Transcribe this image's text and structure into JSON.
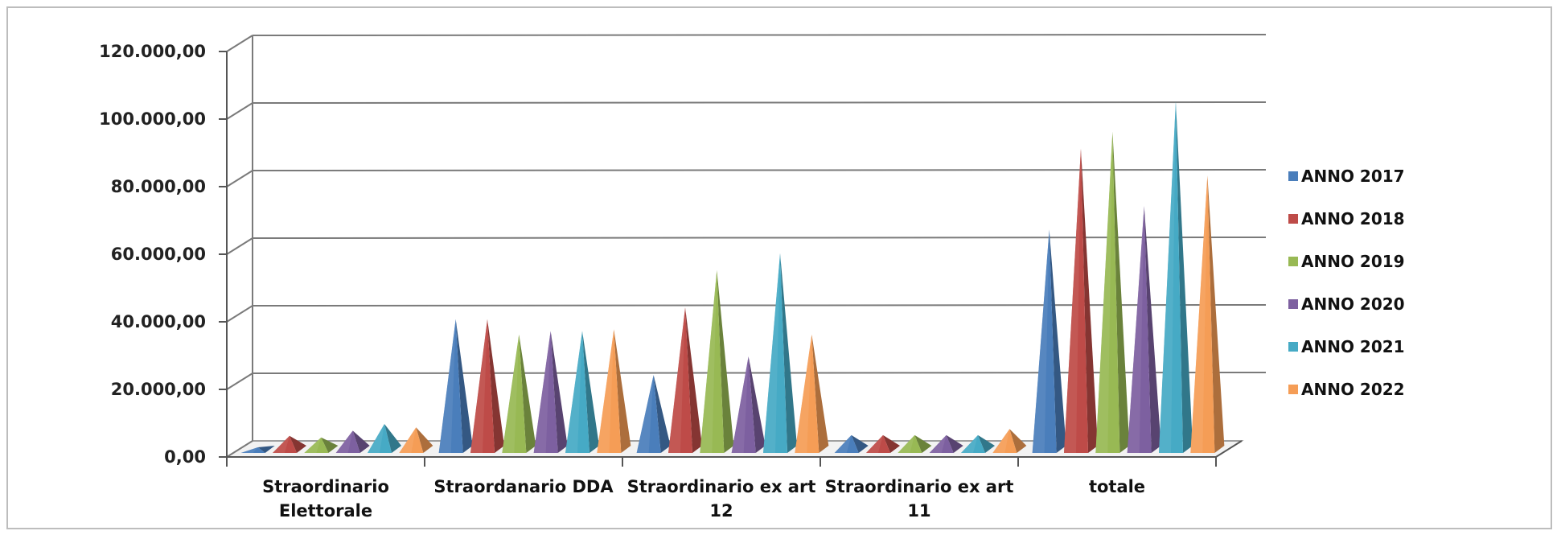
{
  "chart_data": {
    "type": "bar",
    "subtype": "3d-pyramid",
    "title": "",
    "xlabel": "",
    "ylabel": "",
    "ylim": [
      0,
      120000
    ],
    "y_ticks": [
      "0,00",
      "20.000,00",
      "40.000,00",
      "60.000,00",
      "80.000,00",
      "100.000,00",
      "120.000,00"
    ],
    "categories": [
      [
        "Straordinario",
        "Elettorale"
      ],
      [
        "Straordanario DDA"
      ],
      [
        "Straordinario ex art",
        "12"
      ],
      [
        "Straordinario ex art",
        "11"
      ],
      [
        "totale"
      ]
    ],
    "legend_position": "right",
    "grid": true,
    "series": [
      {
        "name": "ANNO 2017",
        "color": "#4a7ebb",
        "values": [
          600,
          38500,
          22000,
          4200,
          65000
        ]
      },
      {
        "name": "ANNO 2018",
        "color": "#be4b48",
        "values": [
          4000,
          38500,
          42000,
          4200,
          89000
        ]
      },
      {
        "name": "ANNO 2019",
        "color": "#98b954",
        "values": [
          3500,
          34000,
          53000,
          4200,
          94000
        ]
      },
      {
        "name": "ANNO 2020",
        "color": "#7d60a0",
        "values": [
          5500,
          35000,
          27500,
          4200,
          72000
        ]
      },
      {
        "name": "ANNO 2021",
        "color": "#46aac5",
        "values": [
          7500,
          35000,
          58000,
          4200,
          103000
        ]
      },
      {
        "name": "ANNO 2022",
        "color": "#f59d56",
        "values": [
          6500,
          35500,
          34000,
          6000,
          81000
        ]
      }
    ]
  }
}
